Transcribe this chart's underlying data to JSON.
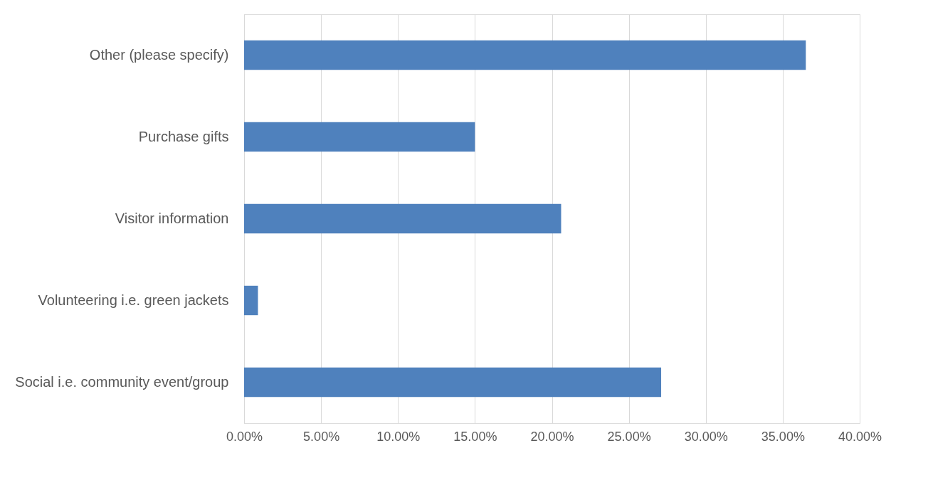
{
  "chart_data": {
    "type": "bar",
    "orientation": "horizontal",
    "categories": [
      "Other (please specify)",
      "Purchase gifts",
      "Visitor information",
      "Volunteering i.e. green jackets",
      "Social i.e. community event/group"
    ],
    "values": [
      36.5,
      15.0,
      20.6,
      0.9,
      27.1
    ],
    "color": "#4f81bd",
    "xlim": [
      0,
      40
    ],
    "xticks": [
      {
        "value": 0,
        "label": "0.00%"
      },
      {
        "value": 5,
        "label": "5.00%"
      },
      {
        "value": 10,
        "label": "10.00%"
      },
      {
        "value": 15,
        "label": "15.00%"
      },
      {
        "value": 20,
        "label": "20.00%"
      },
      {
        "value": 25,
        "label": "25.00%"
      },
      {
        "value": 30,
        "label": "30.00%"
      },
      {
        "value": 35,
        "label": "35.00%"
      },
      {
        "value": 40,
        "label": "40.00%"
      }
    ],
    "grid": "x"
  }
}
